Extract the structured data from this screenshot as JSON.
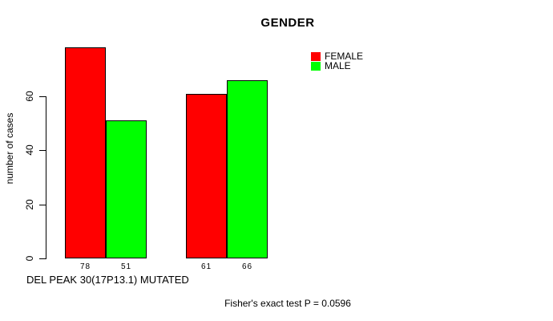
{
  "chart_data": {
    "type": "bar",
    "title": "GENDER",
    "ylabel": "number of cases",
    "xlabel": "DEL PEAK 30(17P13.1) MUTATED",
    "annotation": "Fisher's exact test P = 0.0596",
    "series": [
      {
        "name": "FEMALE",
        "color": "#ff0000",
        "values": [
          78,
          61
        ]
      },
      {
        "name": "MALE",
        "color": "#00ff00",
        "values": [
          51,
          66
        ]
      }
    ],
    "bar_value_labels": [
      [
        78,
        51
      ],
      [
        61,
        66
      ]
    ],
    "yticks": [
      0,
      20,
      40,
      60
    ],
    "ylim": [
      0,
      80
    ],
    "grid": false,
    "legend_position": "top-right",
    "background_color": "#ffffff",
    "bar_border_color": "#000000"
  }
}
